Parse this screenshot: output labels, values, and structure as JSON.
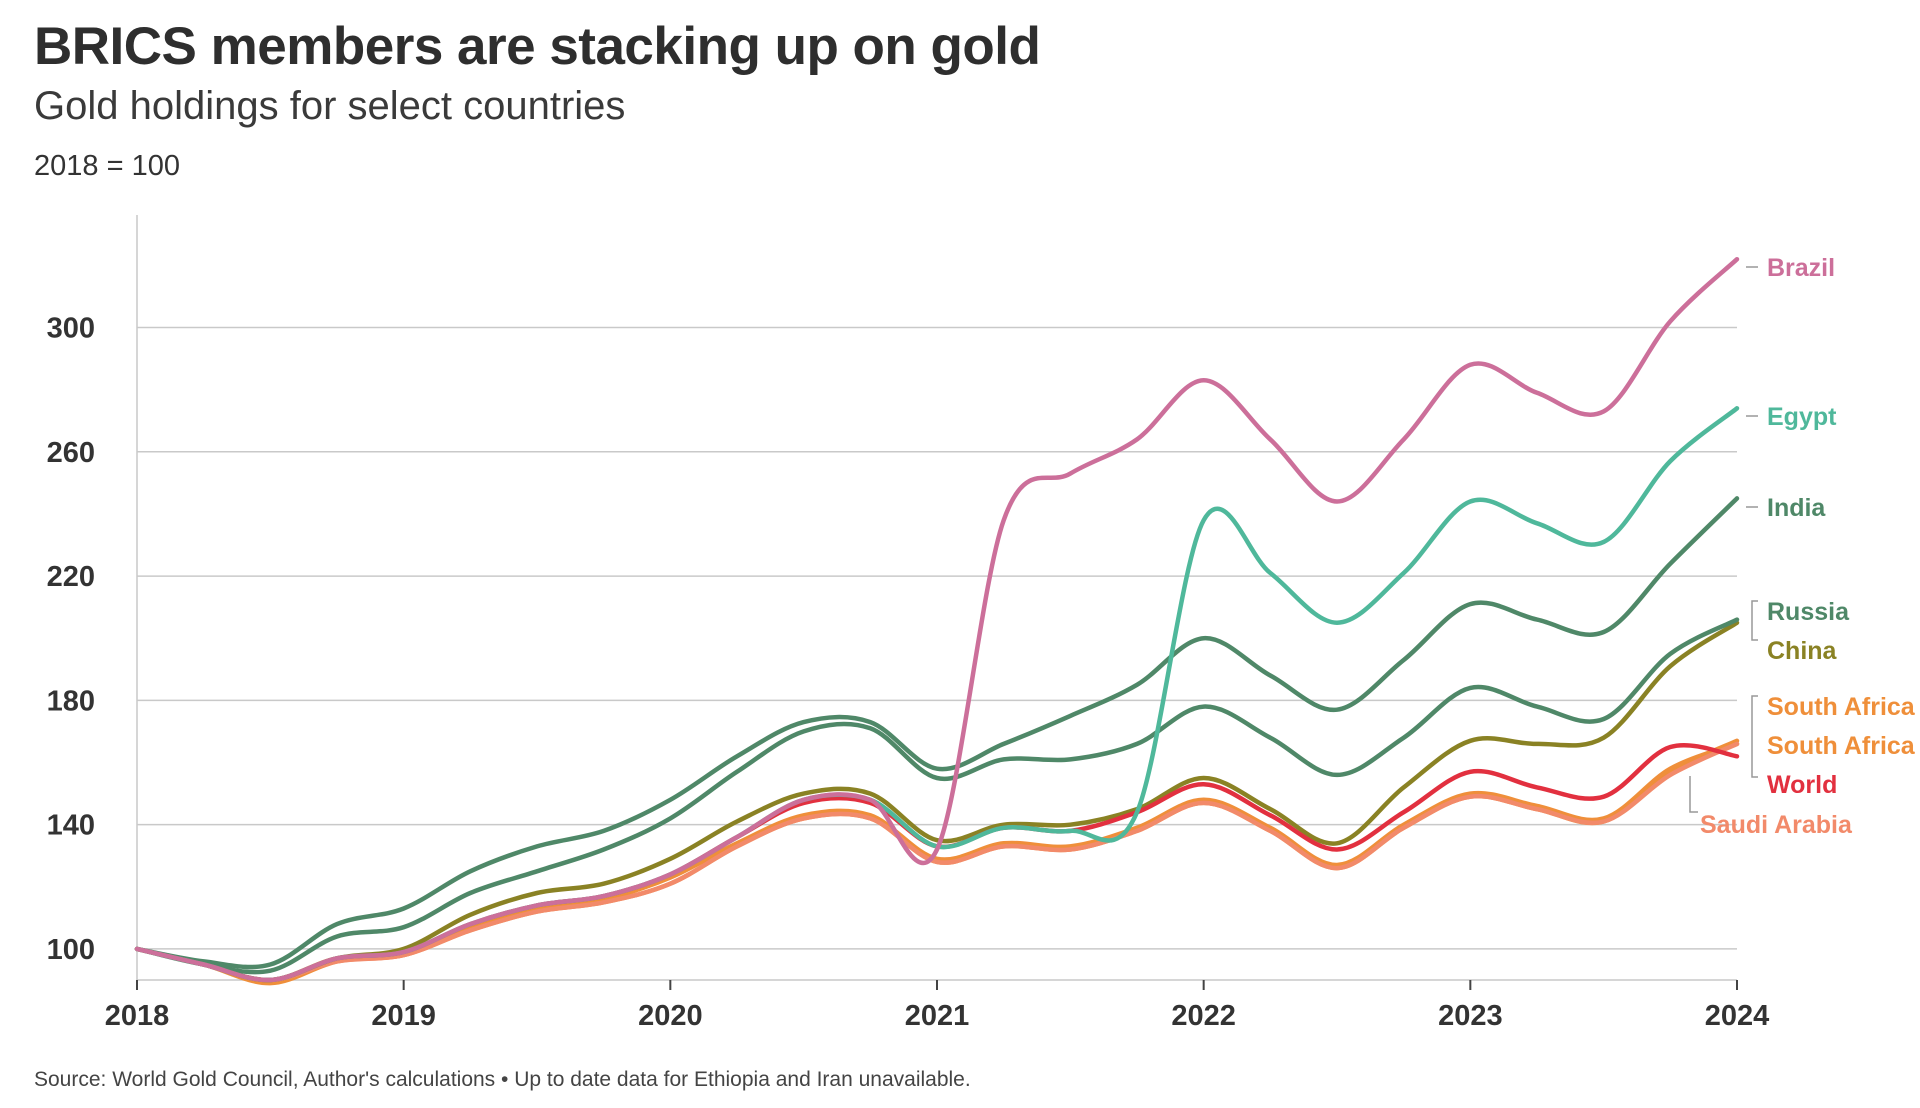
{
  "header": {
    "title": "BRICS members are stacking up on gold",
    "subtitle": "Gold holdings for select countries",
    "unit_note": "2018 = 100"
  },
  "footer": {
    "source": "Source: World Gold Council, Author's calculations • Up to date data for Ethiopia and Iran unavailable."
  },
  "chart_data": {
    "type": "line",
    "title": "BRICS members are stacking up on gold",
    "subtitle": "Gold holdings for select countries",
    "ylabel": "",
    "xlabel": "",
    "x_ticks": [
      "2018",
      "2019",
      "2020",
      "2021",
      "2022",
      "2023",
      "2024"
    ],
    "y_ticks": [
      100,
      140,
      180,
      220,
      260,
      300
    ],
    "xlim": [
      2018,
      2024
    ],
    "ylim": [
      90,
      333
    ],
    "grid": "horizontal",
    "x": [
      2018,
      2018.25,
      2018.5,
      2018.75,
      2019,
      2019.25,
      2019.5,
      2019.75,
      2020,
      2020.25,
      2020.5,
      2020.75,
      2021,
      2021.25,
      2021.5,
      2021.75,
      2022,
      2022.25,
      2022.5,
      2022.75,
      2023,
      2023.25,
      2023.5,
      2023.75,
      2024
    ],
    "series": [
      {
        "name": "Brazil",
        "color": "#cc6f9a",
        "values": [
          100,
          95,
          90,
          97,
          99,
          108,
          114,
          117,
          124,
          136,
          148,
          148,
          132,
          238,
          253,
          264,
          283,
          264,
          244,
          264,
          288,
          279,
          273,
          302,
          322
        ]
      },
      {
        "name": "Egypt",
        "color": "#4fb89b",
        "values": [
          100,
          95,
          90,
          97,
          99,
          108,
          114,
          117,
          124,
          136,
          148,
          148,
          133,
          139,
          138,
          144,
          238,
          221,
          205,
          221,
          244,
          237,
          231,
          257,
          274
        ]
      },
      {
        "name": "India",
        "color": "#4f8868",
        "values": [
          100,
          96,
          95,
          108,
          113,
          125,
          133,
          138,
          148,
          162,
          173,
          173,
          158,
          166,
          175,
          185,
          200,
          188,
          177,
          193,
          211,
          206,
          202,
          224,
          245
        ]
      },
      {
        "name": "Russia",
        "color": "#4f8868",
        "values": [
          100,
          95,
          93,
          104,
          107,
          118,
          125,
          132,
          142,
          157,
          170,
          171,
          155,
          161,
          161,
          166,
          178,
          168,
          156,
          168,
          184,
          178,
          174,
          195,
          206
        ]
      },
      {
        "name": "China",
        "color": "#8a8224",
        "values": [
          100,
          95,
          90,
          97,
          100,
          111,
          118,
          121,
          129,
          141,
          150,
          150,
          135,
          140,
          140,
          145,
          155,
          145,
          134,
          152,
          167,
          166,
          168,
          191,
          205
        ]
      },
      {
        "name": "South Africa",
        "color": "#ef8f3a",
        "values": [
          100,
          95,
          89,
          96,
          98,
          106,
          112,
          115,
          121,
          133,
          142,
          142,
          128,
          133,
          132,
          138,
          147,
          138,
          126,
          139,
          149,
          145,
          141,
          157,
          167
        ]
      },
      {
        "name": "South Africa",
        "color": "#ef8f3a",
        "values": [
          100,
          95,
          90,
          97,
          98,
          107,
          113,
          116,
          123,
          134,
          143,
          143,
          129,
          134,
          133,
          139,
          148,
          139,
          127,
          140,
          150,
          146,
          142,
          158,
          166
        ]
      },
      {
        "name": "World",
        "color": "#e2303f",
        "values": [
          100,
          95,
          90,
          97,
          99,
          108,
          114,
          117,
          124,
          136,
          147,
          147,
          133,
          139,
          138,
          144,
          153,
          143,
          132,
          144,
          157,
          152,
          149,
          165,
          162
        ]
      },
      {
        "name": "Saudi Arabia",
        "color": "#f28a6a",
        "values": [
          100,
          95,
          90,
          96,
          98,
          106,
          112,
          115,
          121,
          133,
          142,
          142,
          128,
          133,
          132,
          138,
          147,
          138,
          126,
          139,
          149,
          145,
          141,
          156,
          166
        ]
      }
    ],
    "end_labels": [
      {
        "text": "Brazil",
        "color": "#cc6f9a"
      },
      {
        "text": "Egypt",
        "color": "#4fb89b"
      },
      {
        "text": "India",
        "color": "#4f8868"
      },
      {
        "text": "Russia",
        "color": "#4f8868"
      },
      {
        "text": "China",
        "color": "#8a8224"
      },
      {
        "text": "South Africa",
        "color": "#ef8f3a"
      },
      {
        "text": "South Africa",
        "color": "#ef8f3a"
      },
      {
        "text": "World",
        "color": "#e2303f"
      },
      {
        "text": "Saudi Arabia",
        "color": "#f28a6a"
      }
    ]
  }
}
